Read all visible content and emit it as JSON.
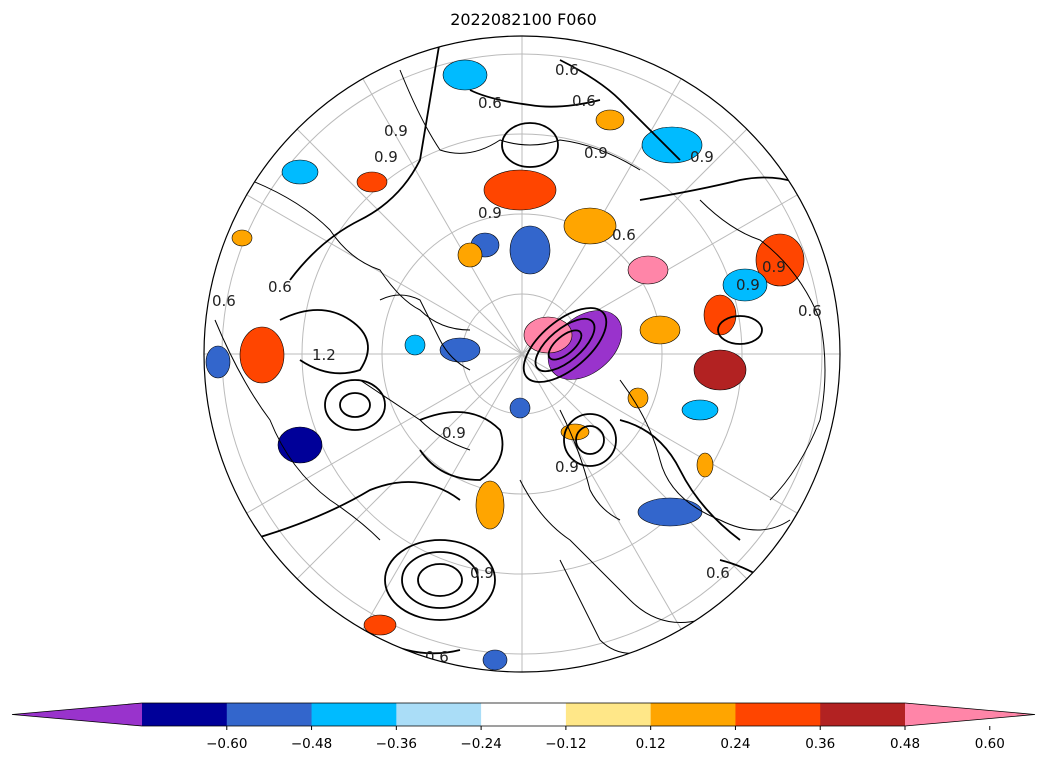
{
  "title": "2022082100 F060",
  "colorbar": {
    "colors": [
      "#9933CC",
      "#000099",
      "#3366CC",
      "#00BBFF",
      "#AADDF7",
      "#FFFFFF",
      "#FFE788",
      "#FFA500",
      "#FF4500",
      "#B22222",
      "#FF85A8"
    ],
    "ticks": [
      "−0.60",
      "−0.48",
      "−0.36",
      "−0.24",
      "−0.12",
      "0.12",
      "0.24",
      "0.36",
      "0.48",
      "0.60"
    ],
    "extend": "both"
  },
  "contour_labels": [
    "0.6",
    "0.6",
    "0.6",
    "0.9",
    "0.9",
    "0.9",
    "0.9",
    "0.9",
    "0.6",
    "0.9",
    "0.6",
    "0.6",
    "0.6",
    "1.2",
    "0.9",
    "0.9",
    "0.9",
    "0.6",
    "0.9",
    "0.6"
  ]
}
